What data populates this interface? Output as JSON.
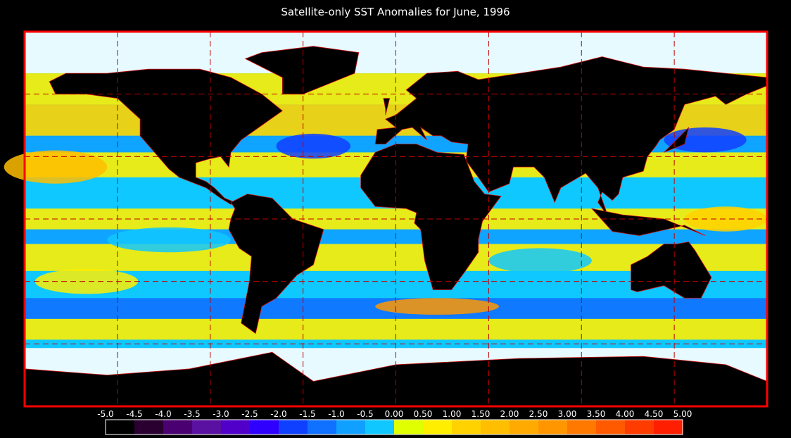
{
  "title": "Satellite-only SST Anomalies for June, 1996",
  "colorbar": {
    "ticks": [
      {
        "value": -5,
        "label": "-5.0"
      },
      {
        "value": -4.5,
        "label": "-4.5"
      },
      {
        "value": -4,
        "label": "-4.0"
      },
      {
        "value": -3.5,
        "label": "-3.5"
      },
      {
        "value": -3,
        "label": "-3.0"
      },
      {
        "value": -2.5,
        "label": "-2.5"
      },
      {
        "value": -2,
        "label": "-2.0"
      },
      {
        "value": -1.5,
        "label": "-1.5"
      },
      {
        "value": -1,
        "label": "-1.0"
      },
      {
        "value": -0.5,
        "label": "-0.5"
      },
      {
        "value": 0,
        "label": "0.00"
      },
      {
        "value": 0.5,
        "label": "0.50"
      },
      {
        "value": 1,
        "label": "1.00"
      },
      {
        "value": 1.5,
        "label": "1.50"
      },
      {
        "value": 2,
        "label": "2.00"
      },
      {
        "value": 2.5,
        "label": "2.50"
      },
      {
        "value": 3,
        "label": "3.00"
      },
      {
        "value": 3.5,
        "label": "3.50"
      },
      {
        "value": 4,
        "label": "4.00"
      },
      {
        "value": 4.5,
        "label": "4.50"
      },
      {
        "value": 5,
        "label": "5.00"
      }
    ],
    "colors": [
      "#000000",
      "#2a0030",
      "#4a0070",
      "#5a10a0",
      "#5000c8",
      "#3000ff",
      "#1040ff",
      "#1070ff",
      "#10a0ff",
      "#10c8ff",
      "#e0ff00",
      "#ffee00",
      "#ffd200",
      "#ffbe00",
      "#ffaa00",
      "#ff9600",
      "#ff7800",
      "#ff5a00",
      "#ff3c00",
      "#ff1e00"
    ]
  }
}
